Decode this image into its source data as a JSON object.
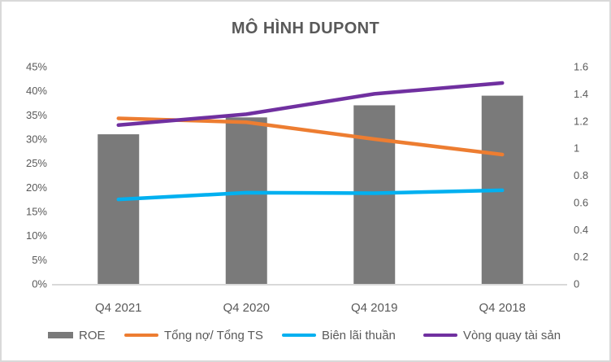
{
  "chart_data": {
    "type": "combo-bar-line",
    "title": "MÔ HÌNH DUPONT",
    "categories": [
      "Q4 2021",
      "Q4 2020",
      "Q4 2019",
      "Q4 2018"
    ],
    "series": [
      {
        "id": "roe",
        "name": "ROE",
        "type": "bar",
        "axis": "left",
        "unit": "percent",
        "color": "#7A7A7A",
        "values": [
          31,
          34.5,
          37,
          39
        ]
      },
      {
        "id": "debt-ratio",
        "name": "Tổng nợ/ Tổng TS",
        "type": "line",
        "axis": "left",
        "unit": "percent",
        "color": "#ED7D31",
        "values": [
          34.3,
          33.5,
          30,
          26.8
        ]
      },
      {
        "id": "net-margin",
        "name": "Biên lãi thuần",
        "type": "line",
        "axis": "left",
        "unit": "percent",
        "color": "#00B0F0",
        "values": [
          17.5,
          18.9,
          18.8,
          19.4
        ]
      },
      {
        "id": "asset-turnover",
        "name": "Vòng quay tài sản",
        "type": "line",
        "axis": "right",
        "unit": "ratio",
        "color": "#7030A0",
        "values": [
          1.17,
          1.25,
          1.4,
          1.48
        ]
      }
    ],
    "left_axis": {
      "min": 0,
      "max": 45,
      "step": 5,
      "unit": "%",
      "ticks": [
        "0%",
        "5%",
        "10%",
        "15%",
        "20%",
        "25%",
        "30%",
        "35%",
        "40%",
        "45%"
      ]
    },
    "right_axis": {
      "min": 0,
      "max": 1.6,
      "step": 0.2,
      "ticks": [
        "0",
        "0.2",
        "0.4",
        "0.6",
        "0.8",
        "1",
        "1.2",
        "1.4",
        "1.6"
      ]
    },
    "legend_position": "bottom",
    "gridlines": false
  },
  "colors": {
    "title_text": "#595959",
    "axis_text": "#595959",
    "legend_text": "#595959",
    "axis_line": "#D9D9D9",
    "frame_border": "#D9D9D9",
    "background": "#FFFFFF"
  }
}
